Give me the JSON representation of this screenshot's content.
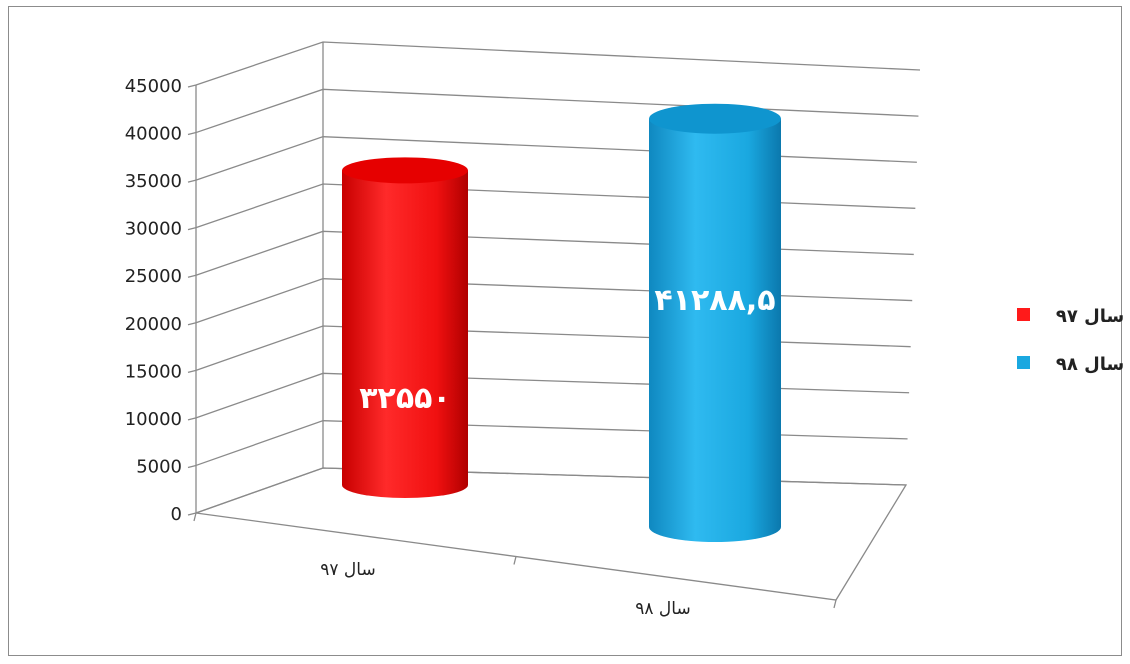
{
  "chart_data": {
    "type": "bar",
    "style": "3d-cylinder",
    "categories": [
      "سال ۹۷",
      "سال ۹۸"
    ],
    "values": [
      32550,
      41288.5
    ],
    "data_labels": [
      "۳۲۵۵۰",
      "۴۱۲۸۸,۵"
    ],
    "colors": [
      "#ff1a1a",
      "#1aa8e0"
    ],
    "ylim": [
      0,
      45000
    ],
    "yticks": [
      "0",
      "5000",
      "10000",
      "15000",
      "20000",
      "25000",
      "30000",
      "35000",
      "40000",
      "45000"
    ],
    "grid": true,
    "legend": {
      "placement": "right",
      "entries": [
        {
          "label": "سال ۹۷",
          "color": "#ff1a1a"
        },
        {
          "label": "سال ۹۸",
          "color": "#1aa8e0"
        }
      ]
    }
  }
}
